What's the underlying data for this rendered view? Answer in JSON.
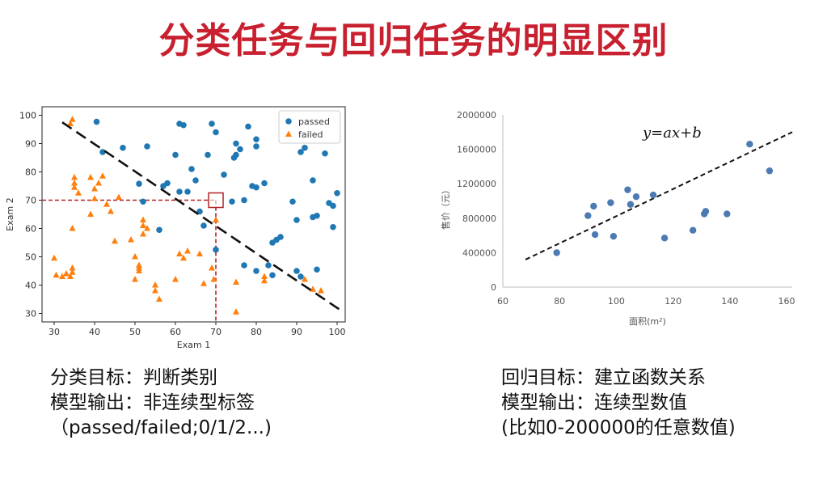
{
  "page": {
    "title": "分类任务与回归任务的明显区别"
  },
  "chart_data": [
    {
      "type": "scatter",
      "title": "",
      "xlabel": "Exam 1",
      "ylabel": "Exam 2",
      "xlim": [
        27,
        102
      ],
      "ylim": [
        27,
        103
      ],
      "xticks": [
        "30",
        "40",
        "50",
        "60",
        "70",
        "80",
        "90",
        "100"
      ],
      "yticks": [
        "30",
        "40",
        "50",
        "60",
        "70",
        "80",
        "90",
        "100"
      ],
      "grid": false,
      "legend": "top-right",
      "series": [
        {
          "name": "passed",
          "color": "#1f77b4",
          "marker": "circle",
          "points": [
            [
              40.5,
              97.7
            ],
            [
              42,
              87
            ],
            [
              47,
              88.5
            ],
            [
              53,
              89
            ],
            [
              51,
              75.8
            ],
            [
              52,
              69.5
            ],
            [
              56,
              59.5
            ],
            [
              57,
              75
            ],
            [
              58,
              76
            ],
            [
              60,
              86
            ],
            [
              61,
              97
            ],
            [
              61,
              73
            ],
            [
              62,
              96.5
            ],
            [
              63,
              73
            ],
            [
              64,
              81
            ],
            [
              65,
              77
            ],
            [
              66,
              66
            ],
            [
              67,
              61
            ],
            [
              68,
              86
            ],
            [
              69,
              97
            ],
            [
              70,
              94
            ],
            [
              70,
              52.5
            ],
            [
              72,
              79
            ],
            [
              74,
              69.5
            ],
            [
              74.5,
              85
            ],
            [
              75,
              90
            ],
            [
              75,
              86
            ],
            [
              76,
              88
            ],
            [
              77,
              70
            ],
            [
              77,
              47
            ],
            [
              78,
              96
            ],
            [
              79,
              75
            ],
            [
              80,
              74.5
            ],
            [
              80,
              91.5
            ],
            [
              80,
              89
            ],
            [
              80,
              45
            ],
            [
              82,
              76
            ],
            [
              83,
              47
            ],
            [
              84,
              55
            ],
            [
              84,
              43.5
            ],
            [
              85,
              56
            ],
            [
              86,
              57
            ],
            [
              89,
              69.5
            ],
            [
              90,
              45
            ],
            [
              90,
              63
            ],
            [
              91,
              43
            ],
            [
              91,
              87
            ],
            [
              92,
              88.5
            ],
            [
              94,
              77
            ],
            [
              94,
              64
            ],
            [
              95,
              45.5
            ],
            [
              95,
              64.5
            ],
            [
              97,
              86.5
            ],
            [
              98,
              69
            ],
            [
              99,
              68
            ],
            [
              99,
              60.5
            ],
            [
              100,
              72.5
            ]
          ]
        },
        {
          "name": "failed",
          "color": "#ff7f0e",
          "marker": "triangle",
          "points": [
            [
              30,
              49.5
            ],
            [
              30.5,
              43.5
            ],
            [
              32,
              43
            ],
            [
              33,
              44
            ],
            [
              34,
              97
            ],
            [
              34.5,
              98.5
            ],
            [
              34,
              43
            ],
            [
              34.5,
              44.5
            ],
            [
              34.5,
              46
            ],
            [
              34.5,
              60
            ],
            [
              35,
              74.5
            ],
            [
              35,
              76
            ],
            [
              35,
              78
            ],
            [
              36,
              72.5
            ],
            [
              39,
              78
            ],
            [
              39,
              65
            ],
            [
              40,
              70.5
            ],
            [
              40,
              74
            ],
            [
              41,
              76
            ],
            [
              42,
              78.5
            ],
            [
              43,
              68.5
            ],
            [
              44,
              66
            ],
            [
              45,
              55.5
            ],
            [
              46,
              71
            ],
            [
              49,
              56
            ],
            [
              50,
              50
            ],
            [
              50,
              42
            ],
            [
              51,
              47
            ],
            [
              51,
              46
            ],
            [
              51,
              45
            ],
            [
              52,
              63
            ],
            [
              52,
              61
            ],
            [
              52,
              58
            ],
            [
              53,
              60
            ],
            [
              55,
              40
            ],
            [
              55,
              38
            ],
            [
              56,
              35
            ],
            [
              60,
              42
            ],
            [
              61,
              51
            ],
            [
              62,
              49.5
            ],
            [
              63,
              52
            ],
            [
              66,
              51
            ],
            [
              67,
              40.5
            ],
            [
              69,
              46
            ],
            [
              69.5,
              42
            ],
            [
              70,
              63
            ],
            [
              75,
              41
            ],
            [
              75,
              30.5
            ],
            [
              82,
              43
            ],
            [
              82,
              41.5
            ],
            [
              92,
              42
            ],
            [
              94,
              38.5
            ],
            [
              96,
              38
            ]
          ]
        }
      ],
      "decision_boundary": [
        [
          32,
          97.5
        ],
        [
          101,
          31
        ]
      ],
      "highlight_point": [
        70,
        70
      ]
    },
    {
      "type": "scatter",
      "title": "",
      "xlabel": "面积(m²)",
      "ylabel": "售价（元）",
      "xlim": [
        60,
        162
      ],
      "ylim": [
        0,
        2000000
      ],
      "xticks": [
        "60",
        "80",
        "100",
        "120",
        "140",
        "160"
      ],
      "yticks": [
        "0",
        "400000",
        "800000",
        "1200000",
        "1600000",
        "2000000"
      ],
      "grid": false,
      "annotation": "y=ax+b",
      "series": [
        {
          "color": "#4c7bb3",
          "marker": "circle",
          "points": [
            [
              79,
              400000
            ],
            [
              90,
              830000
            ],
            [
              92,
              940000
            ],
            [
              92.5,
              610000
            ],
            [
              98,
              980000
            ],
            [
              99,
              590000
            ],
            [
              104,
              1130000
            ],
            [
              105,
              960000
            ],
            [
              107,
              1050000
            ],
            [
              113,
              1070000
            ],
            [
              117,
              570000
            ],
            [
              127,
              660000
            ],
            [
              131,
              850000
            ],
            [
              131.5,
              880000
            ],
            [
              139,
              850000
            ],
            [
              147,
              1660000
            ],
            [
              154,
              1350000
            ]
          ]
        }
      ],
      "fit_line": [
        [
          68,
          320000
        ],
        [
          162,
          1800000
        ]
      ]
    }
  ],
  "captions": {
    "left": [
      "分类目标：判断类别",
      "模型输出：非连续型标签",
      "（passed/failed;0/1/2...)"
    ],
    "right": [
      "回归目标：建立函数关系",
      "模型输出：连续型数值",
      "(比如0-200000的任意数值)"
    ]
  }
}
